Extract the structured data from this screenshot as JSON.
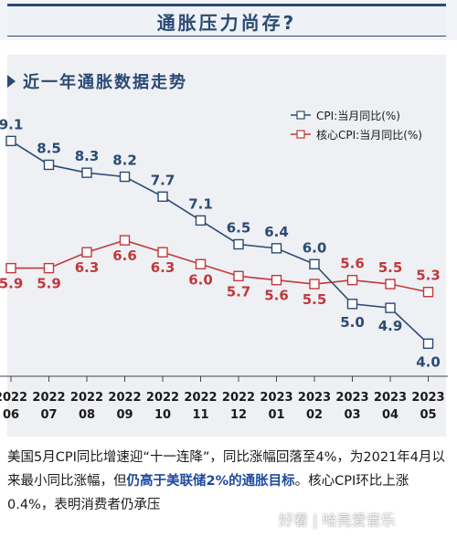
{
  "header": {
    "title": "通胀压力尚存?"
  },
  "chart_data": {
    "type": "line",
    "title": "近一年通胀数据走势",
    "categories": [
      {
        "year": "2022",
        "month": "06"
      },
      {
        "year": "2022",
        "month": "07"
      },
      {
        "year": "2022",
        "month": "08"
      },
      {
        "year": "2022",
        "month": "09"
      },
      {
        "year": "2022",
        "month": "10"
      },
      {
        "year": "2022",
        "month": "11"
      },
      {
        "year": "2022",
        "month": "12"
      },
      {
        "year": "2023",
        "month": "01"
      },
      {
        "year": "2023",
        "month": "02"
      },
      {
        "year": "2023",
        "month": "03"
      },
      {
        "year": "2023",
        "month": "04"
      },
      {
        "year": "2023",
        "month": "05"
      }
    ],
    "series": [
      {
        "name": "CPI:当月同比(%)",
        "color": "#2b4a73",
        "values": [
          9.1,
          8.5,
          8.3,
          8.2,
          7.7,
          7.1,
          6.5,
          6.4,
          6.0,
          5.0,
          4.9,
          4.0
        ],
        "labels": [
          "9.1",
          "8.5",
          "8.3",
          "8.2",
          "7.7",
          "7.1",
          "6.5",
          "6.4",
          "6.0",
          "5.0",
          "4.9",
          "4.0"
        ]
      },
      {
        "name": "核心CPI:当月同比(%)",
        "color": "#c0393b",
        "values": [
          5.9,
          5.9,
          6.3,
          6.6,
          6.3,
          6.0,
          5.7,
          5.6,
          5.5,
          5.6,
          5.5,
          5.3
        ],
        "labels": [
          "5.9",
          "5.9",
          "6.3",
          "6.6",
          "6.3",
          "6.0",
          "5.7",
          "5.6",
          "5.5",
          "5.6",
          "5.5",
          "5.3"
        ]
      }
    ],
    "ylim": [
      3.8,
      9.2
    ],
    "grid": false,
    "legend": "top-right"
  },
  "caption": {
    "part1": "美国5月CPI同比增速迎“十一连降”，同比涨幅回落至4%，为2021年4月以来最小同比涨幅，但",
    "highlight": "仍高于美联储2%的通胀目标",
    "part2": "。核心CPI环比上涨0.4%，表明消费者仍承压"
  },
  "watermark": "好看 | 哈亮爱音乐"
}
